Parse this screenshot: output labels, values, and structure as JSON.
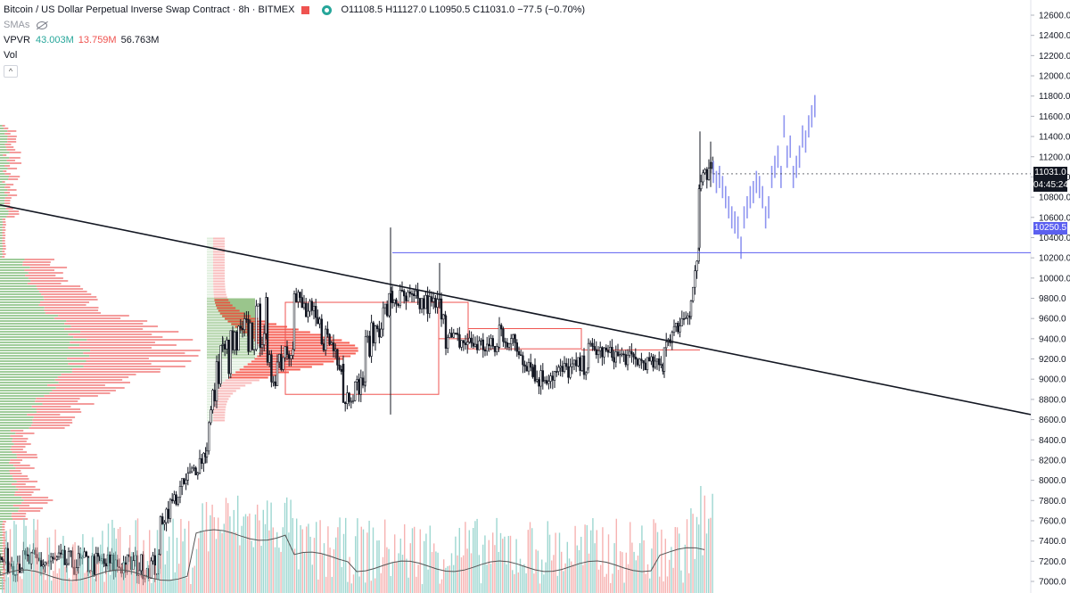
{
  "legend": {
    "title": "Bitcoin / US Dollar Perpetual Inverse Swap Contract · 8h · BITMEX",
    "ohlc": "O11108.5  H11127.0  L10950.5  C11031.0  −77.5 (−0.70%)",
    "smas_label": "SMAs",
    "vpvr_label": "VPVR",
    "vpvr_up": "43.003M",
    "vpvr_down": "13.759M",
    "vpvr_total": "56.763M",
    "vol_label": "Vol",
    "collapse_glyph": "^"
  },
  "price_axis": {
    "ticks": [
      "12600.0",
      "12400.0",
      "12200.0",
      "12000.0",
      "11800.0",
      "11600.0",
      "11400.0",
      "11200.0",
      "11000.0",
      "10800.0",
      "10600.0",
      "10400.0",
      "10200.0",
      "10000.0",
      "9800.0",
      "9600.0",
      "9400.0",
      "9200.0",
      "9000.0",
      "8800.0",
      "8600.0",
      "8400.0",
      "8200.0",
      "8000.0",
      "7800.0",
      "7600.0",
      "7400.0",
      "7200.0",
      "7000.0"
    ],
    "last_price": "11031.0",
    "countdown": "04:45:24",
    "hline_price": "10250.5"
  },
  "colors": {
    "up": "#26a69a",
    "down": "#ef5350",
    "candle": "#131722",
    "hline": "#5b5ff0",
    "projection": "#8f95f0",
    "vpvr_up": "#8fc38a",
    "vpvr_down": "#f28b8b",
    "brand_square": "#ef5350",
    "live_dot": "#26a69a"
  },
  "chart_data": {
    "type": "candlestick",
    "y_range": [
      6980,
      12700
    ],
    "trendline_prices": [
      10900,
      8800
    ],
    "horizontal_level": 10250.5,
    "current_price": 11031.0
  }
}
